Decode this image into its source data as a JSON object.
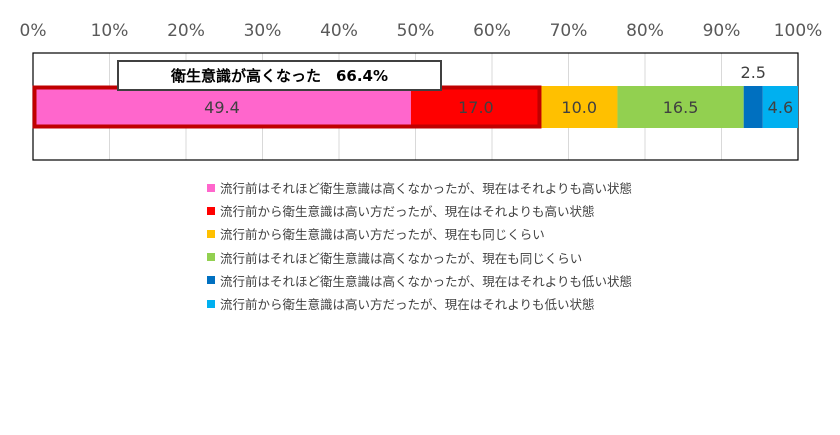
{
  "chart_data": {
    "type": "bar",
    "orientation": "horizontal",
    "stacked": true,
    "xlim": [
      0,
      100
    ],
    "x_ticks": [
      "0%",
      "10%",
      "20%",
      "30%",
      "40%",
      "50%",
      "60%",
      "70%",
      "80%",
      "90%",
      "100%"
    ],
    "grid": true,
    "legend_position": "bottom",
    "series": [
      {
        "name": "流行前はそれほど衛生意識は高くなかったが、現在はそれよりも高い状態",
        "value": 49.4,
        "label": "49.4",
        "color": "#FF66CC"
      },
      {
        "name": "流行前から衛生意識は高い方だったが、現在はそれよりも高い状態",
        "value": 17.0,
        "label": "17.0",
        "color": "#FF0000"
      },
      {
        "name": "流行前から衛生意識は高い方だったが、現在も同じくらい",
        "value": 10.0,
        "label": "10.0",
        "color": "#FFC000"
      },
      {
        "name": "流行前はそれほど衛生意識は高くなかったが、現在も同じくらい",
        "value": 16.5,
        "label": "16.5",
        "color": "#92D050"
      },
      {
        "name": "流行前はそれほど衛生意識は高くなかったが、現在はそれよりも低い状態",
        "value": 2.5,
        "label": "2.5",
        "color": "#0070C0"
      },
      {
        "name": "流行前から衛生意識は高い方だったが、現在はそれよりも低い状態",
        "value": 4.6,
        "label": "4.6",
        "color": "#00B0F0"
      }
    ],
    "annotation": {
      "text": "衛生意識が高くなった　66.4%",
      "highlight_range": [
        0,
        66.4
      ],
      "highlight_color": "#C00000"
    }
  }
}
